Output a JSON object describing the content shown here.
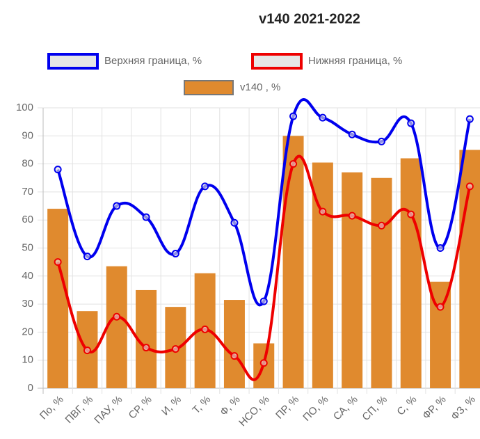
{
  "chart_data": {
    "type": "bar-line",
    "title": "v140 2021-2022",
    "categories": [
      "По, %",
      "ПВГ, %",
      "ПАУ, %",
      "СР, %",
      "И, %",
      "Т, %",
      "Ф, %",
      "НСО, %",
      "ПР, %",
      "ПО, %",
      "СА, %",
      "СП, %",
      "С, %",
      "ФР, %",
      "ФЗ, %"
    ],
    "series": [
      {
        "name": "Верхняя граница, %",
        "type": "line",
        "color": "#0000ee",
        "values": [
          78,
          47,
          65,
          61,
          48,
          72,
          59,
          31,
          97,
          96.5,
          90.5,
          88,
          94.5,
          50,
          96
        ]
      },
      {
        "name": "Нижняя граница, %",
        "type": "line",
        "color": "#ee0000",
        "values": [
          45,
          13.5,
          25.5,
          14.5,
          14,
          21,
          11.5,
          9,
          80,
          63,
          61.5,
          58,
          62,
          29,
          72
        ]
      },
      {
        "name": "v140  , %",
        "type": "bar",
        "color": "#e08a2e",
        "values": [
          64,
          27.5,
          43.5,
          35,
          29,
          41,
          31.5,
          16,
          90,
          80.5,
          77,
          75,
          82,
          38,
          85
        ]
      }
    ],
    "ylim": [
      0,
      100
    ],
    "yticks": [
      0,
      10,
      20,
      30,
      40,
      50,
      60,
      70,
      80,
      90,
      100
    ],
    "grid": true
  }
}
